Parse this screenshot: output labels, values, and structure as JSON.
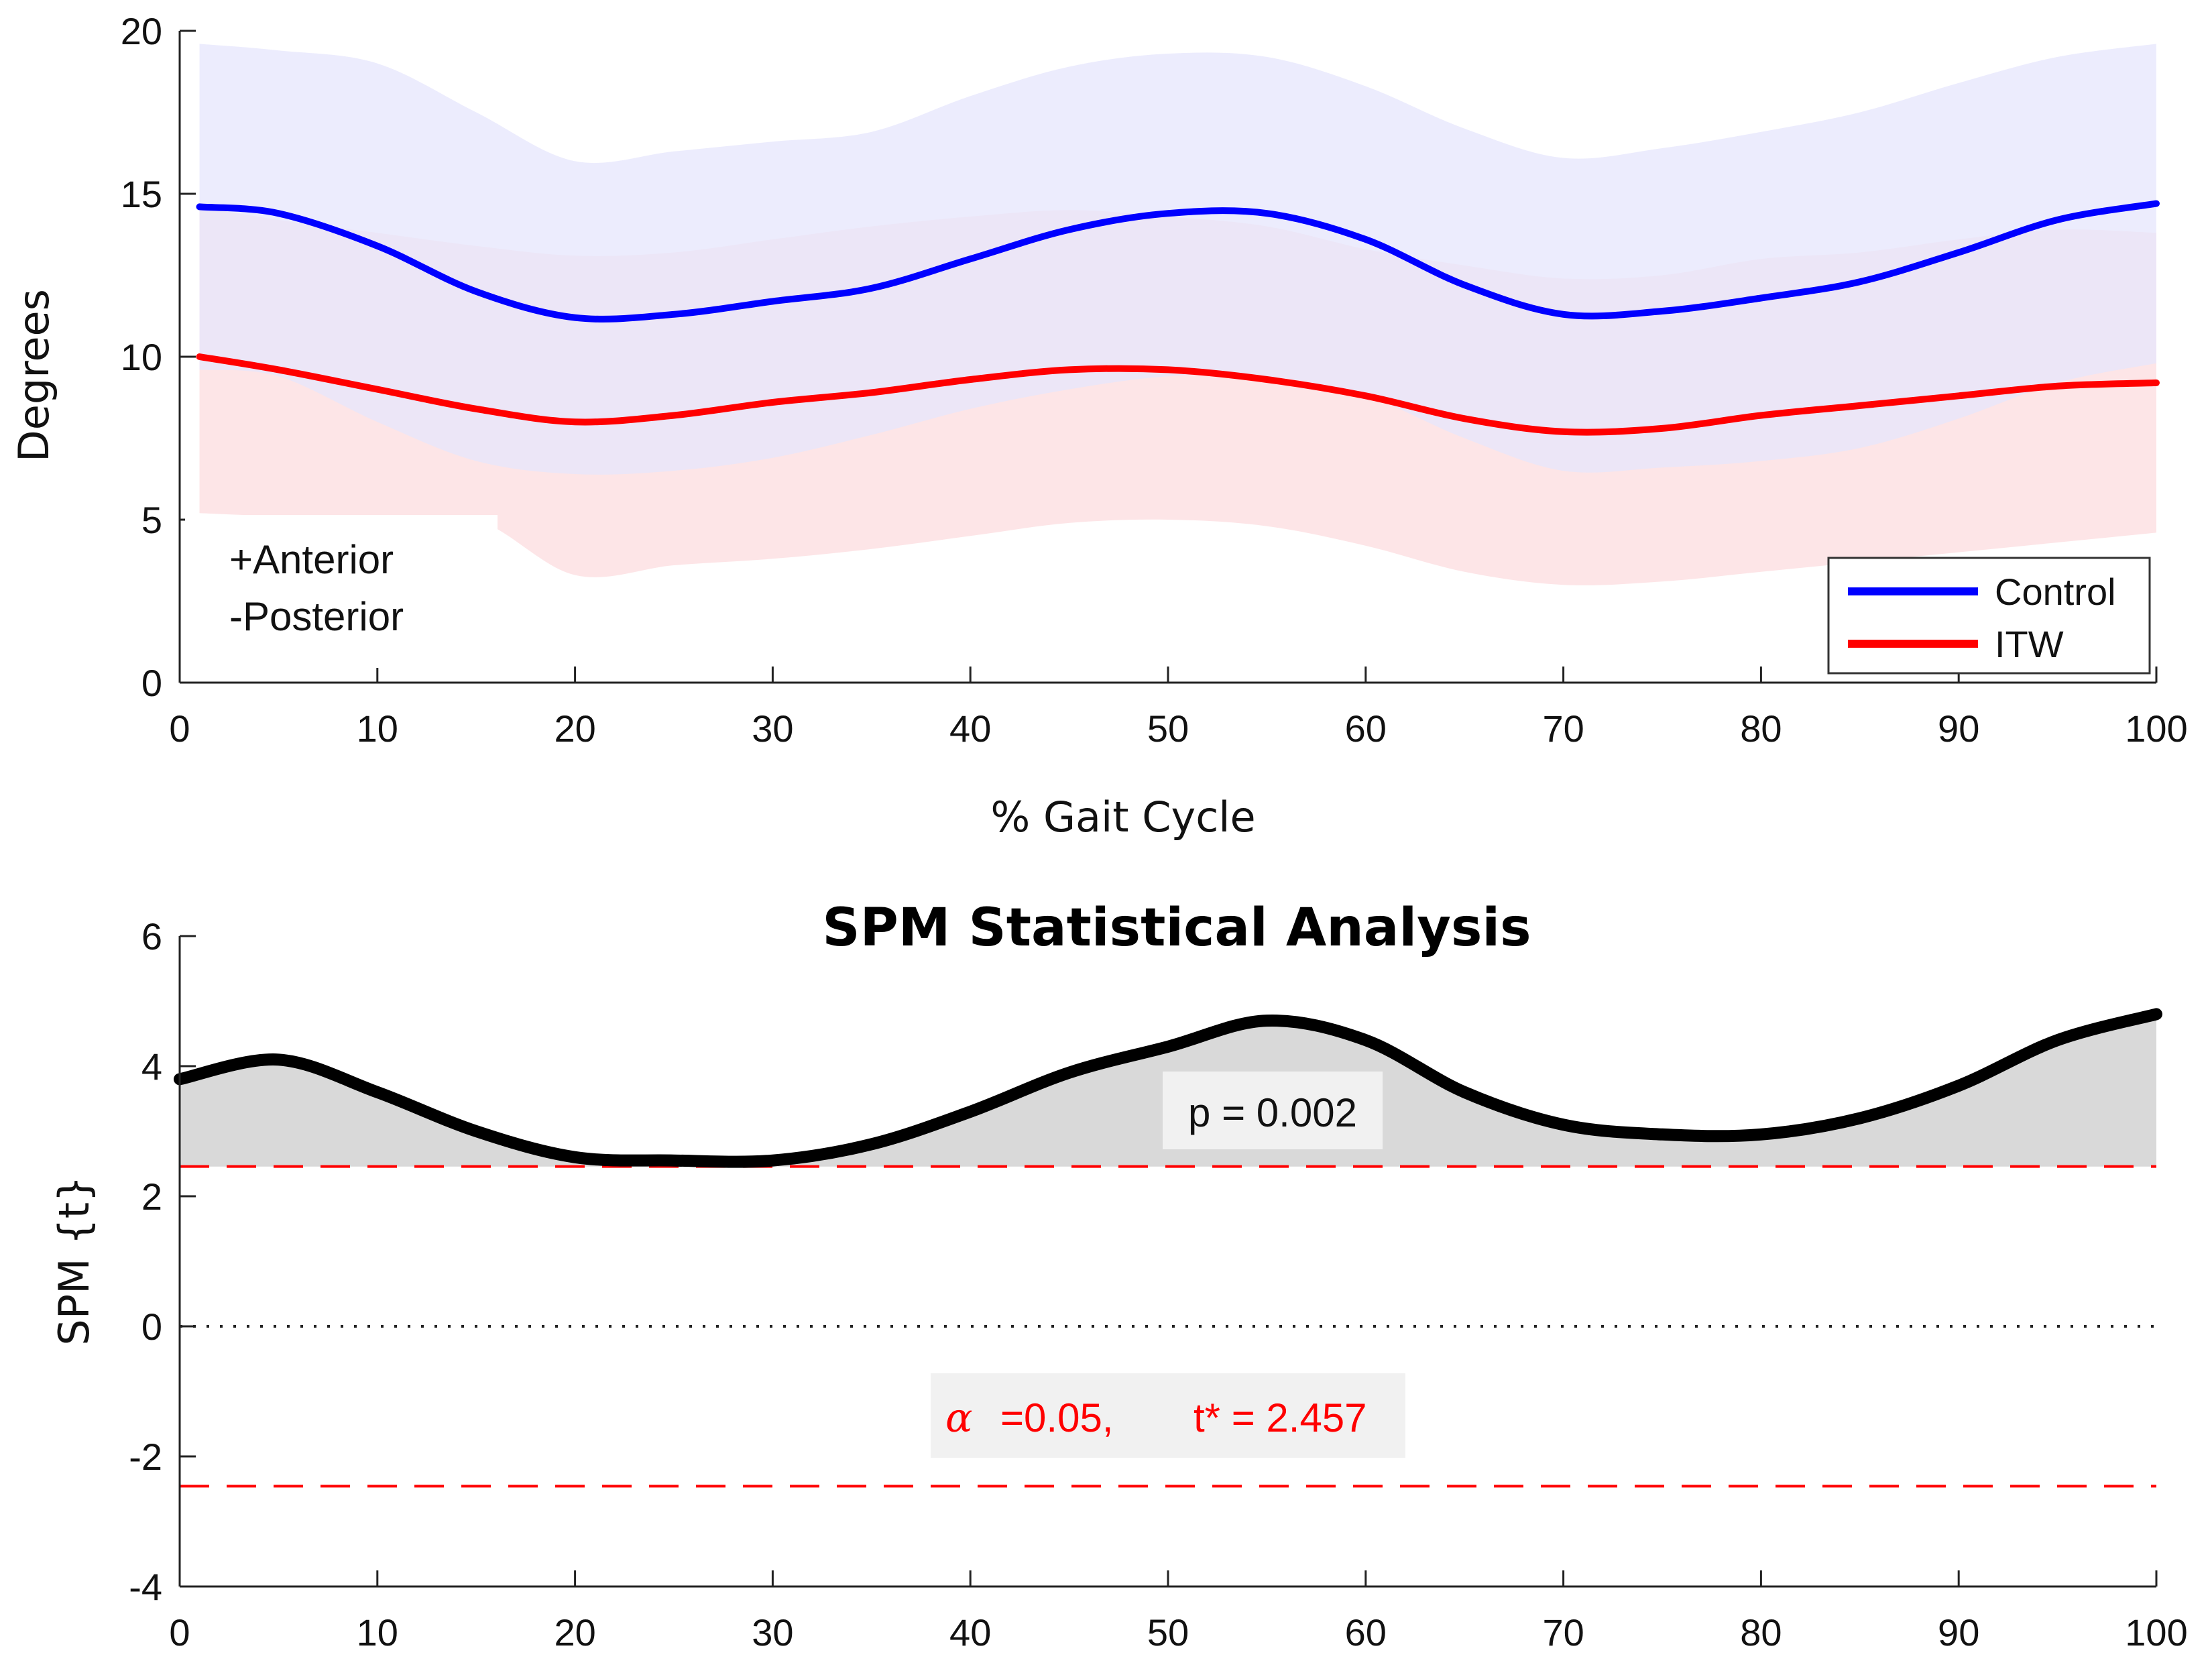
{
  "chart_data": [
    {
      "type": "line",
      "xlabel": "% Gait Cycle",
      "ylabel": "Degrees",
      "xlim": [
        0,
        100
      ],
      "ylim": [
        0,
        20
      ],
      "xticks": [
        "0",
        "10",
        "20",
        "30",
        "40",
        "50",
        "60",
        "70",
        "80",
        "90",
        "100"
      ],
      "yticks": [
        "0",
        "5",
        "10",
        "15",
        "20"
      ],
      "annotation": [
        "+Anterior",
        "-Posterior"
      ],
      "legend": {
        "position": "bottom-right",
        "entries": [
          "Control",
          "ITW"
        ]
      },
      "x": [
        1,
        5,
        10,
        15,
        20,
        25,
        30,
        35,
        40,
        45,
        50,
        55,
        60,
        65,
        70,
        75,
        80,
        85,
        90,
        95,
        100
      ],
      "series": [
        {
          "name": "Control",
          "color": "#0000ff",
          "band_color": "#e5e5fc",
          "values": [
            14.6,
            14.4,
            13.4,
            12.0,
            11.2,
            11.3,
            11.7,
            12.1,
            13.0,
            13.9,
            14.4,
            14.4,
            13.6,
            12.2,
            11.3,
            11.4,
            11.8,
            12.3,
            13.2,
            14.2,
            14.7
          ],
          "upper": [
            19.6,
            19.4,
            19.0,
            17.5,
            16.0,
            16.3,
            16.6,
            16.9,
            18.0,
            18.9,
            19.3,
            19.2,
            18.3,
            17.0,
            16.1,
            16.4,
            16.9,
            17.5,
            18.4,
            19.2,
            19.6
          ],
          "lower": [
            9.6,
            9.4,
            8.0,
            6.8,
            6.4,
            6.5,
            6.9,
            7.6,
            8.4,
            9.0,
            9.4,
            9.4,
            8.8,
            7.5,
            6.5,
            6.6,
            6.8,
            7.2,
            8.1,
            9.2,
            9.8
          ]
        },
        {
          "name": "ITW",
          "color": "#ff0000",
          "band_color": "#fde2e4",
          "values": [
            10.0,
            9.6,
            9.0,
            8.4,
            8.0,
            8.2,
            8.6,
            8.9,
            9.3,
            9.6,
            9.6,
            9.3,
            8.8,
            8.1,
            7.7,
            7.8,
            8.2,
            8.5,
            8.8,
            9.1,
            9.2
          ],
          "upper": [
            14.6,
            14.2,
            13.8,
            13.4,
            13.1,
            13.2,
            13.6,
            14.0,
            14.3,
            14.5,
            14.3,
            14.0,
            13.3,
            12.8,
            12.4,
            12.5,
            13.0,
            13.2,
            13.6,
            13.9,
            13.8
          ],
          "lower": [
            5.2,
            5.1,
            5.0,
            5.0,
            3.3,
            3.6,
            3.8,
            4.1,
            4.5,
            4.9,
            5.0,
            4.8,
            4.2,
            3.4,
            3.0,
            3.1,
            3.4,
            3.7,
            4.0,
            4.3,
            4.6
          ]
        }
      ]
    },
    {
      "type": "area",
      "title": "SPM Statistical Analysis",
      "xlabel": "",
      "ylabel": "SPM {t}",
      "xlim": [
        0,
        100
      ],
      "ylim": [
        -4,
        6
      ],
      "xticks": [
        "0",
        "10",
        "20",
        "30",
        "40",
        "50",
        "60",
        "70",
        "80",
        "90",
        "100"
      ],
      "yticks": [
        "-4",
        "-2",
        "0",
        "2",
        "4",
        "6"
      ],
      "threshold": 2.457,
      "threshold_color": "#ff0000",
      "p_label": "p = 0.002",
      "alpha_symbol": "α",
      "alpha_text": "=0.05,",
      "tstar_text": "t* = 2.457",
      "x": [
        0,
        5,
        10,
        15,
        20,
        25,
        30,
        35,
        40,
        45,
        50,
        55,
        60,
        65,
        70,
        75,
        80,
        85,
        90,
        95,
        100
      ],
      "values": [
        3.8,
        4.1,
        3.6,
        3.0,
        2.6,
        2.55,
        2.55,
        2.8,
        3.3,
        3.9,
        4.3,
        4.7,
        4.4,
        3.6,
        3.1,
        2.95,
        2.95,
        3.2,
        3.7,
        4.4,
        4.8
      ]
    }
  ]
}
